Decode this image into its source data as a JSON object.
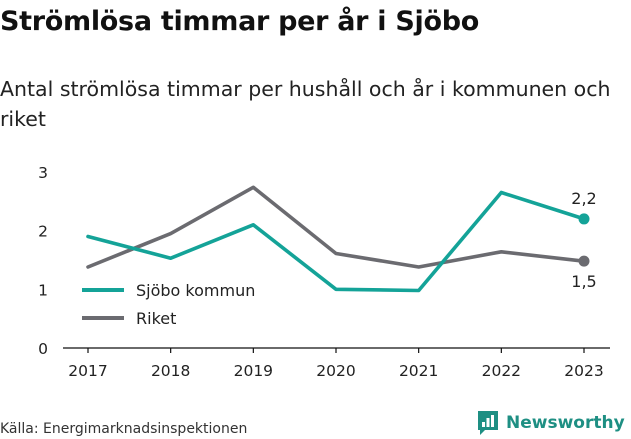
{
  "title": "Strömlösa timmar per år i Sjöbo",
  "subtitle": "Antal strömlösa timmar per hushåll och år i kommunen och riket",
  "source": "Källa: Energimarknadsinspektionen",
  "brand": "Newsworthy",
  "colors": {
    "sjobo": "#14a398",
    "riket": "#6b6b70",
    "brand": "#1e8f83"
  },
  "chart_data": {
    "type": "line",
    "x": [
      "2017",
      "2018",
      "2019",
      "2020",
      "2021",
      "2022",
      "2023"
    ],
    "ylim": [
      0,
      3
    ],
    "yticks": [
      "0",
      "1",
      "2",
      "3"
    ],
    "grid": false,
    "legend_position": "lower-left",
    "series": [
      {
        "name": "Sjöbo kommun",
        "color": "#14a398",
        "values": [
          1.9,
          1.53,
          2.1,
          1.0,
          0.98,
          2.65,
          2.2
        ],
        "end_label": "2,2"
      },
      {
        "name": "Riket",
        "color": "#6b6b70",
        "values": [
          1.38,
          1.95,
          2.74,
          1.61,
          1.38,
          1.64,
          1.48
        ],
        "end_label": "1,5"
      }
    ]
  }
}
